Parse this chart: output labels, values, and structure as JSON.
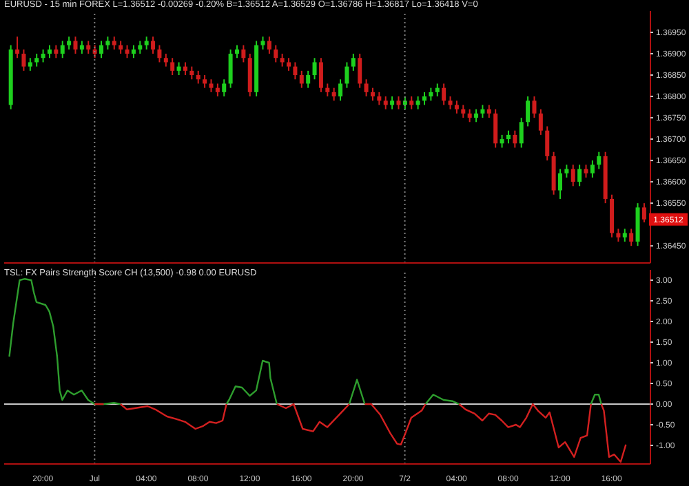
{
  "chart_data": [
    {
      "type": "candlestick",
      "title": "EURUSD - 15 min FOREX L=1.36512 -0.00269 -0.20% B=1.36512 A=1.36529 O=1.36786 H=1.36817 Lo=1.36418 V=0",
      "x": [
        "--06-30T17:30",
        "--06-30T18:00",
        "--06-30T18:30",
        "--06-30T19:00",
        "--06-30T19:30",
        "--06-30T20:00",
        "--06-30T20:30",
        "--06-30T21:00",
        "--06-30T21:30",
        "--06-30T22:00",
        "--06-30T22:30",
        "--06-30T23:00",
        "--06-30T23:30",
        "--07-01T00:00",
        "--07-01T00:30",
        "--07-01T01:00",
        "--07-01T01:30",
        "--07-01T02:00",
        "--07-01T02:30",
        "--07-01T03:00",
        "--07-01T03:30",
        "--07-01T04:00",
        "--07-01T04:30",
        "--07-01T05:00",
        "--07-01T05:30",
        "--07-01T06:00",
        "--07-01T06:30",
        "--07-01T07:00",
        "--07-01T07:30",
        "--07-01T08:00",
        "--07-01T08:30",
        "--07-01T09:00",
        "--07-01T09:30",
        "--07-01T10:00",
        "--07-01T10:30",
        "--07-01T11:00",
        "--07-01T11:30",
        "--07-01T12:00",
        "--07-01T12:30",
        "--07-01T13:00",
        "--07-01T13:30",
        "--07-01T14:00",
        "--07-01T14:30",
        "--07-01T15:00",
        "--07-01T15:30",
        "--07-01T16:00",
        "--07-01T16:30",
        "--07-01T17:00",
        "--07-01T17:30",
        "--07-01T18:00",
        "--07-01T18:30",
        "--07-01T19:00",
        "--07-01T19:30",
        "--07-01T20:00",
        "--07-01T20:30",
        "--07-01T21:00",
        "--07-01T21:30",
        "--07-01T22:00",
        "--07-01T22:30",
        "--07-01T23:00",
        "--07-01T23:30",
        "--07-02T00:00",
        "--07-02T00:30",
        "--07-02T01:00",
        "--07-02T01:30",
        "--07-02T02:00",
        "--07-02T02:30",
        "--07-02T03:00",
        "--07-02T03:30",
        "--07-02T04:00",
        "--07-02T04:30",
        "--07-02T05:00",
        "--07-02T05:30",
        "--07-02T06:00",
        "--07-02T06:30",
        "--07-02T07:00",
        "--07-02T07:30",
        "--07-02T08:00",
        "--07-02T08:30",
        "--07-02T09:00",
        "--07-02T09:30",
        "--07-02T10:00",
        "--07-02T10:30",
        "--07-02T11:00",
        "--07-02T11:30",
        "--07-02T12:00",
        "--07-02T12:30",
        "--07-02T13:00",
        "--07-02T13:30",
        "--07-02T14:00",
        "--07-02T14:30",
        "--07-02T15:00",
        "--07-02T15:30",
        "--07-02T16:00",
        "--07-02T16:30",
        "--07-02T17:00",
        "--07-02T17:30",
        "--07-02T18:00",
        "--07-02T18:30"
      ],
      "ohlc": [
        [
          1.3678,
          1.3692,
          1.3677,
          1.3691
        ],
        [
          1.3691,
          1.3694,
          1.3689,
          1.369
        ],
        [
          1.369,
          1.3691,
          1.3686,
          1.3687
        ],
        [
          1.3687,
          1.3689,
          1.3686,
          1.3688
        ],
        [
          1.3688,
          1.369,
          1.3687,
          1.3689
        ],
        [
          1.3689,
          1.3691,
          1.3688,
          1.369
        ],
        [
          1.369,
          1.3692,
          1.3689,
          1.3691
        ],
        [
          1.3691,
          1.3692,
          1.3689,
          1.369
        ],
        [
          1.369,
          1.3693,
          1.3689,
          1.3692
        ],
        [
          1.3692,
          1.3694,
          1.3691,
          1.3693
        ],
        [
          1.3693,
          1.3694,
          1.369,
          1.3691
        ],
        [
          1.3691,
          1.3693,
          1.369,
          1.3692
        ],
        [
          1.3692,
          1.3693,
          1.369,
          1.3691
        ],
        [
          1.3691,
          1.3692,
          1.3689,
          1.369
        ],
        [
          1.369,
          1.3693,
          1.3689,
          1.3692
        ],
        [
          1.3692,
          1.3694,
          1.3691,
          1.3693
        ],
        [
          1.3693,
          1.3694,
          1.3691,
          1.3692
        ],
        [
          1.3692,
          1.3693,
          1.369,
          1.3691
        ],
        [
          1.3691,
          1.3692,
          1.3689,
          1.369
        ],
        [
          1.369,
          1.3692,
          1.3689,
          1.3691
        ],
        [
          1.3691,
          1.3693,
          1.369,
          1.3692
        ],
        [
          1.3692,
          1.3694,
          1.3691,
          1.3693
        ],
        [
          1.3693,
          1.3694,
          1.369,
          1.3691
        ],
        [
          1.3691,
          1.3692,
          1.3688,
          1.3689
        ],
        [
          1.3689,
          1.369,
          1.3687,
          1.3688
        ],
        [
          1.3688,
          1.3689,
          1.3685,
          1.3686
        ],
        [
          1.3686,
          1.3688,
          1.3685,
          1.3687
        ],
        [
          1.3687,
          1.3688,
          1.3685,
          1.3686
        ],
        [
          1.3686,
          1.3687,
          1.3684,
          1.3685
        ],
        [
          1.3685,
          1.3686,
          1.3683,
          1.3684
        ],
        [
          1.3684,
          1.3685,
          1.3682,
          1.3683
        ],
        [
          1.3683,
          1.3684,
          1.3681,
          1.3682
        ],
        [
          1.3682,
          1.3683,
          1.368,
          1.3681
        ],
        [
          1.3681,
          1.3684,
          1.368,
          1.3683
        ],
        [
          1.3683,
          1.3691,
          1.3682,
          1.369
        ],
        [
          1.369,
          1.3692,
          1.3689,
          1.3691
        ],
        [
          1.3691,
          1.3692,
          1.3688,
          1.3689
        ],
        [
          1.3689,
          1.369,
          1.368,
          1.3681
        ],
        [
          1.3681,
          1.3693,
          1.368,
          1.3692
        ],
        [
          1.3692,
          1.3694,
          1.3691,
          1.3693
        ],
        [
          1.3693,
          1.3694,
          1.369,
          1.3691
        ],
        [
          1.3691,
          1.3692,
          1.3688,
          1.3689
        ],
        [
          1.3689,
          1.369,
          1.3687,
          1.3688
        ],
        [
          1.3688,
          1.3689,
          1.3686,
          1.3687
        ],
        [
          1.3687,
          1.3688,
          1.3684,
          1.3685
        ],
        [
          1.3685,
          1.3686,
          1.3682,
          1.3683
        ],
        [
          1.3683,
          1.3686,
          1.3682,
          1.3685
        ],
        [
          1.3685,
          1.3689,
          1.3684,
          1.3688
        ],
        [
          1.3688,
          1.3689,
          1.3681,
          1.3682
        ],
        [
          1.3682,
          1.3683,
          1.368,
          1.3681
        ],
        [
          1.3681,
          1.3682,
          1.3679,
          1.368
        ],
        [
          1.368,
          1.3684,
          1.3679,
          1.3683
        ],
        [
          1.3683,
          1.3688,
          1.3682,
          1.3687
        ],
        [
          1.3687,
          1.369,
          1.3686,
          1.3689
        ],
        [
          1.3689,
          1.369,
          1.3682,
          1.3683
        ],
        [
          1.3683,
          1.3684,
          1.368,
          1.3681
        ],
        [
          1.3681,
          1.3682,
          1.3679,
          1.368
        ],
        [
          1.368,
          1.3681,
          1.3678,
          1.3679
        ],
        [
          1.3679,
          1.368,
          1.3677,
          1.3678
        ],
        [
          1.3678,
          1.368,
          1.3677,
          1.3679
        ],
        [
          1.3679,
          1.368,
          1.3677,
          1.3678
        ],
        [
          1.3678,
          1.368,
          1.3677,
          1.3679
        ],
        [
          1.3679,
          1.368,
          1.3677,
          1.3678
        ],
        [
          1.3678,
          1.368,
          1.3677,
          1.3679
        ],
        [
          1.3679,
          1.3681,
          1.3678,
          1.368
        ],
        [
          1.368,
          1.3682,
          1.3679,
          1.3681
        ],
        [
          1.3681,
          1.3683,
          1.368,
          1.3682
        ],
        [
          1.3682,
          1.3683,
          1.3678,
          1.3679
        ],
        [
          1.3679,
          1.368,
          1.3677,
          1.3678
        ],
        [
          1.3678,
          1.3679,
          1.3676,
          1.3677
        ],
        [
          1.3677,
          1.3678,
          1.3675,
          1.3676
        ],
        [
          1.3676,
          1.3677,
          1.3674,
          1.3675
        ],
        [
          1.3675,
          1.3677,
          1.3674,
          1.3676
        ],
        [
          1.3676,
          1.3678,
          1.3675,
          1.3677
        ],
        [
          1.3677,
          1.3678,
          1.3675,
          1.3676
        ],
        [
          1.3676,
          1.3677,
          1.3668,
          1.3669
        ],
        [
          1.3669,
          1.3671,
          1.3668,
          1.367
        ],
        [
          1.367,
          1.3672,
          1.3669,
          1.3671
        ],
        [
          1.3671,
          1.3672,
          1.3668,
          1.3669
        ],
        [
          1.3669,
          1.3675,
          1.3668,
          1.3674
        ],
        [
          1.3674,
          1.368,
          1.3673,
          1.3679
        ],
        [
          1.3679,
          1.368,
          1.3675,
          1.3676
        ],
        [
          1.3676,
          1.3677,
          1.3671,
          1.3672
        ],
        [
          1.3672,
          1.3673,
          1.3665,
          1.3666
        ],
        [
          1.3666,
          1.3667,
          1.3657,
          1.3658
        ],
        [
          1.3658,
          1.3663,
          1.3656,
          1.3662
        ],
        [
          1.3662,
          1.3664,
          1.3661,
          1.3663
        ],
        [
          1.3663,
          1.3664,
          1.3659,
          1.366
        ],
        [
          1.366,
          1.3664,
          1.3659,
          1.3663
        ],
        [
          1.3663,
          1.3664,
          1.3661,
          1.3662
        ],
        [
          1.3662,
          1.3665,
          1.3661,
          1.3664
        ],
        [
          1.3664,
          1.3667,
          1.3663,
          1.3666
        ],
        [
          1.3666,
          1.3667,
          1.3655,
          1.3656
        ],
        [
          1.3656,
          1.3657,
          1.3647,
          1.3648
        ],
        [
          1.3648,
          1.3649,
          1.3646,
          1.3647
        ],
        [
          1.3647,
          1.3649,
          1.3646,
          1.3648
        ],
        [
          1.3648,
          1.3649,
          1.3645,
          1.3646
        ],
        [
          1.3646,
          1.3655,
          1.3645,
          1.3654
        ],
        [
          1.3654,
          1.3655,
          1.36505,
          1.36512
        ]
      ],
      "colors": [
        "#1ed01e",
        "#d01c1c",
        "#d01c1c",
        "#1ed01e",
        "#1ed01e",
        "#1ed01e",
        "#1ed01e",
        "#d01c1c",
        "#1ed01e",
        "#1ed01e",
        "#d01c1c",
        "#1ed01e",
        "#d01c1c",
        "#d01c1c",
        "#1ed01e",
        "#1ed01e",
        "#d01c1c",
        "#d01c1c",
        "#d01c1c",
        "#1ed01e",
        "#1ed01e",
        "#1ed01e",
        "#d01c1c",
        "#d01c1c",
        "#d01c1c",
        "#d01c1c",
        "#1ed01e",
        "#d01c1c",
        "#d01c1c",
        "#d01c1c",
        "#d01c1c",
        "#d01c1c",
        "#d01c1c",
        "#1ed01e",
        "#1ed01e",
        "#1ed01e",
        "#d01c1c",
        "#d01c1c",
        "#1ed01e",
        "#1ed01e",
        "#d01c1c",
        "#d01c1c",
        "#d01c1c",
        "#d01c1c",
        "#d01c1c",
        "#d01c1c",
        "#1ed01e",
        "#1ed01e",
        "#d01c1c",
        "#d01c1c",
        "#d01c1c",
        "#1ed01e",
        "#1ed01e",
        "#1ed01e",
        "#d01c1c",
        "#d01c1c",
        "#d01c1c",
        "#d01c1c",
        "#d01c1c",
        "#1ed01e",
        "#d01c1c",
        "#1ed01e",
        "#d01c1c",
        "#1ed01e",
        "#1ed01e",
        "#1ed01e",
        "#1ed01e",
        "#d01c1c",
        "#d01c1c",
        "#d01c1c",
        "#d01c1c",
        "#d01c1c",
        "#1ed01e",
        "#1ed01e",
        "#d01c1c",
        "#d01c1c",
        "#1ed01e",
        "#1ed01e",
        "#d01c1c",
        "#1ed01e",
        "#1ed01e",
        "#d01c1c",
        "#d01c1c",
        "#d01c1c",
        "#d01c1c",
        "#1ed01e",
        "#1ed01e",
        "#d01c1c",
        "#1ed01e",
        "#d01c1c",
        "#1ed01e",
        "#1ed01e",
        "#d01c1c",
        "#d01c1c",
        "#d01c1c",
        "#1ed01e",
        "#d01c1c",
        "#1ed01e",
        "#d01c1c"
      ],
      "xlim": [
        "--06-30T17:00",
        "--07-02T19:00"
      ],
      "ylim": [
        1.3641,
        1.37
      ],
      "yticks": [
        {
          "value": 1.3645,
          "label": "1.36450"
        },
        {
          "value": 1.3655,
          "label": "1.36550"
        },
        {
          "value": 1.366,
          "label": "1.36600"
        },
        {
          "value": 1.3665,
          "label": "1.36650"
        },
        {
          "value": 1.367,
          "label": "1.36700"
        },
        {
          "value": 1.3675,
          "label": "1.36750"
        },
        {
          "value": 1.368,
          "label": "1.36800"
        },
        {
          "value": 1.3685,
          "label": "1.36850"
        },
        {
          "value": 1.369,
          "label": "1.36900"
        },
        {
          "value": 1.3695,
          "label": "1.36950"
        }
      ],
      "annotations": [
        {
          "text": "1.36512",
          "x": "--07-02T18:30",
          "y": 1.36512
        }
      ],
      "ref_lines": [
        {
          "axis": "x",
          "value": "--07-01T00:00",
          "line_style": "dotted",
          "color": "#808080"
        },
        {
          "axis": "x",
          "value": "--07-02T00:00",
          "line_style": "dotted",
          "color": "#808080"
        }
      ],
      "tick_labels": "y"
    },
    {
      "type": "line",
      "title": "TSL: FX Pairs Strength Score CH (13,500) -0.98 0.00 EURUSD",
      "x": [
        "--06-30T17:24",
        "--06-30T17:42",
        "--06-30T18:12",
        "--06-30T18:36",
        "--06-30T19:06",
        "--06-30T19:18",
        "--06-30T19:30",
        "--06-30T20:12",
        "--06-30T20:30",
        "--06-30T20:48",
        "--06-30T21:06",
        "--06-30T21:18",
        "--06-30T21:30",
        "--06-30T21:54",
        "--06-30T22:24",
        "--06-30T23:00",
        "--06-30T23:30",
        "--07-01T00:00",
        "--07-01T00:42",
        "--07-01T01:30",
        "--07-01T02:00",
        "--07-01T02:30",
        "--07-01T03:06",
        "--07-01T04:06",
        "--07-01T04:42",
        "--07-01T05:36",
        "--07-01T06:18",
        "--07-01T07:00",
        "--07-01T07:48",
        "--07-01T08:24",
        "--07-01T08:54",
        "--07-01T09:24",
        "--07-01T09:54",
        "--07-01T10:12",
        "--07-01T10:24",
        "--07-01T10:54",
        "--07-01T11:24",
        "--07-01T12:00",
        "--07-01T12:30",
        "--07-01T13:00",
        "--07-01T13:30",
        "--07-01T13:36",
        "--07-01T14:06",
        "--07-01T14:48",
        "--07-01T15:24",
        "--07-01T16:06",
        "--07-01T16:54",
        "--07-01T17:24",
        "--07-01T18:00",
        "--07-01T19:00",
        "--07-01T19:42",
        "--07-01T20:18",
        "--07-01T20:54",
        "--07-01T21:24",
        "--07-01T22:06",
        "--07-01T22:54",
        "--07-01T23:24",
        "--07-01T23:42",
        "--07-02T00:06",
        "--07-02T00:30",
        "--07-02T01:18",
        "--07-02T01:36",
        "--07-02T02:12",
        "--07-02T03:00",
        "--07-02T03:42",
        "--07-02T04:12",
        "--07-02T04:42",
        "--07-02T05:24",
        "--07-02T06:00",
        "--07-02T06:30",
        "--07-02T07:00",
        "--07-02T07:30",
        "--07-02T08:00",
        "--07-02T08:36",
        "--07-02T08:54",
        "--07-02T09:24",
        "--07-02T09:54",
        "--07-02T10:18",
        "--07-02T10:54",
        "--07-02T11:12",
        "--07-02T11:54",
        "--07-02T12:24",
        "--07-02T13:06",
        "--07-02T13:36",
        "--07-02T14:06",
        "--07-02T14:24",
        "--07-02T14:42",
        "--07-02T15:00",
        "--07-02T15:12",
        "--07-02T15:24",
        "--07-02T15:48",
        "--07-02T16:12",
        "--07-02T16:42",
        "--07-02T17:06"
      ],
      "series": [
        {
          "color": "#2e9e2e",
          "values": [
            1.15,
            1.95,
            3.0,
            3.03,
            3.0,
            2.7,
            2.47,
            2.4,
            2.24,
            1.88,
            1.15,
            0.33,
            0.1,
            0.33,
            0.23,
            0.33,
            0.1,
            0,
            0,
            0.03,
            0,
            null,
            null,
            null,
            null,
            null,
            null,
            null,
            null,
            null,
            null,
            null,
            null,
            0,
            0.1,
            0.43,
            0.4,
            0.2,
            0.33,
            1.05,
            1.0,
            0.63,
            0,
            null,
            null,
            null,
            null,
            null,
            null,
            null,
            0,
            0.59,
            0,
            null,
            null,
            null,
            null,
            null,
            null,
            null,
            null,
            0,
            0.23,
            0.1,
            0.07,
            0,
            null,
            null,
            null,
            null,
            null,
            null,
            null,
            null,
            null,
            null,
            null,
            null,
            null,
            null,
            null,
            null,
            null,
            null,
            null,
            0,
            0.23,
            0.23,
            0,
            null,
            null,
            null,
            null,
            null
          ]
        },
        {
          "color": "#d42020",
          "values": [
            null,
            null,
            null,
            null,
            null,
            null,
            null,
            null,
            null,
            null,
            null,
            null,
            null,
            null,
            null,
            null,
            null,
            0,
            0,
            null,
            0,
            -0.13,
            -0.1,
            -0.05,
            -0.13,
            -0.3,
            -0.36,
            -0.43,
            -0.6,
            -0.53,
            -0.43,
            -0.46,
            -0.4,
            0,
            null,
            null,
            null,
            null,
            null,
            null,
            null,
            null,
            0,
            -0.1,
            0,
            -0.6,
            -0.66,
            -0.43,
            -0.56,
            -0.23,
            0,
            null,
            0,
            0,
            -0.26,
            -0.72,
            -0.96,
            -0.98,
            -0.66,
            -0.33,
            -0.16,
            0,
            null,
            null,
            null,
            0,
            -0.13,
            -0.23,
            -0.4,
            -0.23,
            -0.26,
            -0.4,
            -0.56,
            -0.5,
            -0.56,
            -0.33,
            0,
            -0.16,
            -0.33,
            -0.2,
            -1.05,
            -0.92,
            -1.28,
            -0.82,
            -0.76,
            0,
            null,
            null,
            0,
            -0.16,
            -1.28,
            -1.22,
            -1.4,
            -0.98
          ]
        }
      ],
      "xlim": [
        "--06-30T17:00",
        "--07-02T19:00"
      ],
      "ylim": [
        -1.45,
        3.25
      ],
      "xticks": [
        {
          "value": "--06-30T20:00",
          "label": "20:00"
        },
        {
          "value": "--07-01T00:00",
          "label": "Jul"
        },
        {
          "value": "--07-01T04:00",
          "label": "04:00"
        },
        {
          "value": "--07-01T08:00",
          "label": "08:00"
        },
        {
          "value": "--07-01T12:00",
          "label": "12:00"
        },
        {
          "value": "--07-01T16:00",
          "label": "16:00"
        },
        {
          "value": "--07-01T20:00",
          "label": "20:00"
        },
        {
          "value": "--07-02T00:00",
          "label": "7/2"
        },
        {
          "value": "--07-02T04:00",
          "label": "04:00"
        },
        {
          "value": "--07-02T08:00",
          "label": "08:00"
        },
        {
          "value": "--07-02T12:00",
          "label": "12:00"
        },
        {
          "value": "--07-02T16:00",
          "label": "16:00"
        }
      ],
      "yticks": [
        {
          "value": -1,
          "label": "-1.00"
        },
        {
          "value": -0.5,
          "label": "-0.50"
        },
        {
          "value": 0,
          "label": "0.00"
        },
        {
          "value": 0.5,
          "label": "0.50"
        },
        {
          "value": 1,
          "label": "1.00"
        },
        {
          "value": 1.5,
          "label": "1.50"
        },
        {
          "value": 2,
          "label": "2.00"
        },
        {
          "value": 2.5,
          "label": "2.50"
        },
        {
          "value": 3,
          "label": "3.00"
        }
      ],
      "ref_lines": [
        {
          "axis": "x",
          "value": "--07-01T00:00",
          "line_style": "dotted",
          "color": "#808080"
        },
        {
          "axis": "x",
          "value": "--07-02T00:00",
          "line_style": "dotted",
          "color": "#808080"
        },
        {
          "axis": "y",
          "value": 0,
          "color": "#c8c8c8"
        }
      ]
    }
  ]
}
